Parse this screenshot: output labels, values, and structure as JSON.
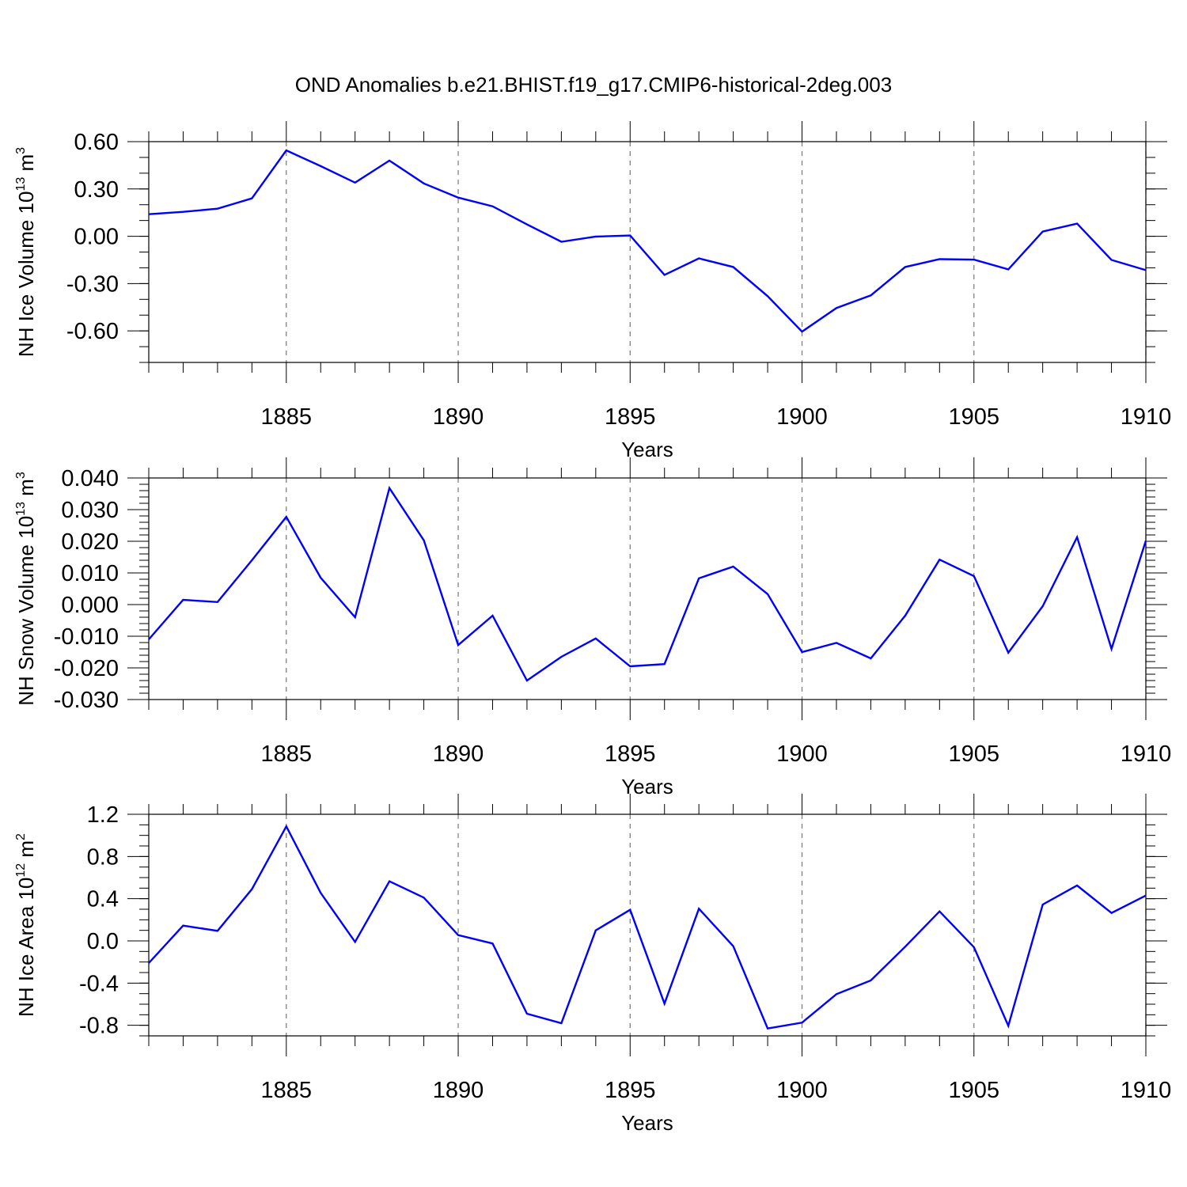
{
  "title": "OND Anomalies b.e21.BHIST.f19_g17.CMIP6-historical-2deg.003",
  "chart_data": [
    {
      "type": "line",
      "xlabel": "Years",
      "ylabel": "NH Ice Volume 10",
      "ylabel_exp": "13",
      "ylabel_unit": "m",
      "ylabel_unit_exp": "3",
      "xlim": [
        1881,
        1910
      ],
      "ylim": [
        -0.8,
        0.6
      ],
      "yticks": [
        0.6,
        0.3,
        0.0,
        -0.3,
        -0.6
      ],
      "ytick_labels": [
        "0.60",
        "0.30",
        "0.00",
        "-0.30",
        "-0.60"
      ],
      "xticks": [
        1885,
        1890,
        1895,
        1900,
        1905,
        1910
      ],
      "xtick_labels": [
        "1885",
        "1890",
        "1895",
        "1900",
        "1905",
        "1910"
      ],
      "color": "#0000ff",
      "x": [
        1881,
        1882,
        1883,
        1884,
        1885,
        1886,
        1887,
        1888,
        1889,
        1890,
        1891,
        1892,
        1893,
        1894,
        1895,
        1896,
        1897,
        1898,
        1899,
        1900,
        1901,
        1902,
        1903,
        1904,
        1905,
        1906,
        1907,
        1908,
        1909,
        1910
      ],
      "y": [
        0.14,
        0.155,
        0.175,
        0.24,
        0.545,
        0.445,
        0.34,
        0.48,
        0.335,
        0.245,
        0.19,
        0.075,
        -0.035,
        -0.002,
        0.005,
        -0.245,
        -0.14,
        -0.195,
        -0.38,
        -0.605,
        -0.455,
        -0.375,
        -0.195,
        -0.145,
        -0.148,
        -0.21,
        0.03,
        0.08,
        -0.15,
        -0.215
      ]
    },
    {
      "type": "line",
      "xlabel": "Years",
      "ylabel": "NH Snow Volume 10",
      "ylabel_exp": "13",
      "ylabel_unit": "m",
      "ylabel_unit_exp": "3",
      "xlim": [
        1881,
        1910
      ],
      "ylim": [
        -0.03,
        0.04
      ],
      "yticks": [
        0.04,
        0.03,
        0.02,
        0.01,
        0.0,
        -0.01,
        -0.02,
        -0.03
      ],
      "ytick_labels": [
        "0.040",
        "0.030",
        "0.020",
        "0.010",
        "0.000",
        "-0.010",
        "-0.020",
        "-0.030"
      ],
      "xticks": [
        1885,
        1890,
        1895,
        1900,
        1905,
        1910
      ],
      "xtick_labels": [
        "1885",
        "1890",
        "1895",
        "1900",
        "1905",
        "1910"
      ],
      "color": "#0000ff",
      "x": [
        1881,
        1882,
        1883,
        1884,
        1885,
        1886,
        1887,
        1888,
        1889,
        1890,
        1891,
        1892,
        1893,
        1894,
        1895,
        1896,
        1897,
        1898,
        1899,
        1900,
        1901,
        1902,
        1903,
        1904,
        1905,
        1906,
        1907,
        1908,
        1909,
        1910
      ],
      "y": [
        -0.011,
        0.0015,
        0.0008,
        0.014,
        0.0277,
        0.0085,
        -0.004,
        0.0368,
        0.0203,
        -0.0128,
        -0.0035,
        -0.024,
        -0.0165,
        -0.0107,
        -0.0195,
        -0.0188,
        0.0083,
        0.012,
        0.0033,
        -0.015,
        -0.0121,
        -0.017,
        -0.0035,
        0.0142,
        0.009,
        -0.0152,
        -0.0005,
        0.0213,
        -0.014,
        0.0202
      ]
    },
    {
      "type": "line",
      "xlabel": "Years",
      "ylabel": "NH Ice Area 10",
      "ylabel_exp": "12",
      "ylabel_unit": "m",
      "ylabel_unit_exp": "2",
      "xlim": [
        1881,
        1910
      ],
      "ylim": [
        -0.9,
        1.2
      ],
      "yticks": [
        1.2,
        0.8,
        0.4,
        0.0,
        -0.4,
        -0.8
      ],
      "ytick_labels": [
        "1.2",
        "0.8",
        "0.4",
        "0.0",
        "-0.4",
        "-0.8"
      ],
      "xticks": [
        1885,
        1890,
        1895,
        1900,
        1905,
        1910
      ],
      "xtick_labels": [
        "1885",
        "1890",
        "1895",
        "1900",
        "1905",
        "1910"
      ],
      "color": "#0000ff",
      "x": [
        1881,
        1882,
        1883,
        1884,
        1885,
        1886,
        1887,
        1888,
        1889,
        1890,
        1891,
        1892,
        1893,
        1894,
        1895,
        1896,
        1897,
        1898,
        1899,
        1900,
        1901,
        1902,
        1903,
        1904,
        1905,
        1906,
        1907,
        1908,
        1909,
        1910
      ],
      "y": [
        -0.21,
        0.145,
        0.095,
        0.49,
        1.085,
        0.455,
        -0.01,
        0.565,
        0.41,
        0.055,
        -0.025,
        -0.69,
        -0.78,
        0.1,
        0.295,
        -0.595,
        0.305,
        -0.05,
        -0.83,
        -0.775,
        -0.505,
        -0.375,
        -0.055,
        0.28,
        -0.06,
        -0.805,
        0.345,
        0.525,
        0.265,
        0.43
      ]
    }
  ]
}
